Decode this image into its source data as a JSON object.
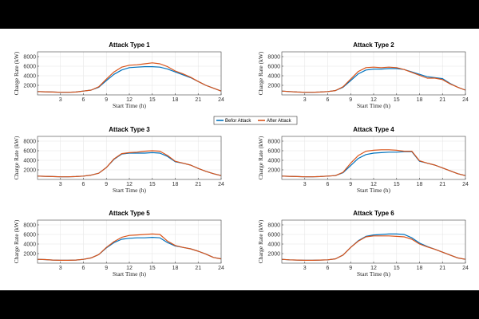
{
  "chart_data": {
    "type": "line",
    "legend": {
      "placement": "center",
      "entries": [
        {
          "name": "Befor Attack",
          "color": "#0072BD"
        },
        {
          "name": "After Attack",
          "color": "#D95319"
        }
      ]
    },
    "x": [
      0,
      1,
      2,
      3,
      4,
      5,
      6,
      7,
      8,
      9,
      10,
      11,
      12,
      13,
      14,
      15,
      16,
      17,
      18,
      19,
      20,
      21,
      22,
      23,
      24
    ],
    "xlim": [
      0,
      24
    ],
    "ylim": [
      0,
      9000
    ],
    "xticks": [
      3,
      6,
      9,
      12,
      15,
      18,
      21,
      24
    ],
    "yticks": [
      2000,
      4000,
      6000,
      8000
    ],
    "grid": true,
    "panels": [
      {
        "title": "Attack Type 1",
        "xlabel": "Start Time (h)",
        "ylabel": "Charge Rate (kW)",
        "series": [
          {
            "name": "Befor Attack",
            "values": [
              700,
              650,
              600,
              550,
              550,
              600,
              800,
              1000,
              1600,
              3000,
              4300,
              5200,
              5700,
              5800,
              5900,
              5900,
              5800,
              5400,
              4800,
              4200,
              3600,
              2800,
              2000,
              1400,
              800
            ]
          },
          {
            "name": "After Attack",
            "values": [
              700,
              650,
              600,
              550,
              550,
              600,
              800,
              1000,
              1700,
              3300,
              4800,
              5800,
              6200,
              6300,
              6500,
              6700,
              6500,
              5900,
              5000,
              4400,
              3700,
              2800,
              2000,
              1400,
              800
            ]
          }
        ]
      },
      {
        "title": "Attack Type 2",
        "xlabel": "Start Time (h)",
        "ylabel": "Charge Rate (kW)",
        "series": [
          {
            "name": "Befor Attack",
            "values": [
              800,
              700,
              600,
              550,
              550,
              600,
              700,
              900,
              1600,
              3000,
              4400,
              5200,
              5400,
              5400,
              5500,
              5500,
              5300,
              4800,
              4300,
              3800,
              3600,
              3400,
              2400,
              1600,
              1000
            ]
          },
          {
            "name": "After Attack",
            "values": [
              800,
              700,
              600,
              550,
              550,
              600,
              700,
              900,
              1700,
              3300,
              4900,
              5700,
              5800,
              5700,
              5800,
              5700,
              5300,
              4700,
              4100,
              3500,
              3500,
              3200,
              2300,
              1600,
              1000
            ]
          }
        ]
      },
      {
        "title": "Attack Type 3",
        "xlabel": "Start Time (h)",
        "ylabel": "Charge Rate (kW)",
        "series": [
          {
            "name": "Befor Attack",
            "values": [
              700,
              650,
              600,
              550,
              550,
              600,
              700,
              900,
              1300,
              2500,
              4200,
              5300,
              5500,
              5500,
              5500,
              5600,
              5500,
              4800,
              3700,
              3400,
              3000,
              2300,
              1700,
              1200,
              800
            ]
          },
          {
            "name": "After Attack",
            "values": [
              700,
              650,
              600,
              550,
              550,
              600,
              700,
              900,
              1300,
              2500,
              4300,
              5400,
              5600,
              5700,
              5900,
              6000,
              5900,
              5000,
              3800,
              3400,
              3000,
              2300,
              1700,
              1200,
              800
            ]
          }
        ]
      },
      {
        "title": "Attack Type 4",
        "xlabel": "Start Time (h)",
        "ylabel": "Charge Rate (kW)",
        "series": [
          {
            "name": "Befor Attack",
            "values": [
              700,
              650,
              600,
              550,
              550,
              600,
              700,
              800,
              1400,
              2900,
              4400,
              5200,
              5500,
              5600,
              5700,
              5700,
              5800,
              5800,
              3800,
              3400,
              3000,
              2400,
              1800,
              1200,
              800
            ]
          },
          {
            "name": "After Attack",
            "values": [
              700,
              650,
              600,
              550,
              550,
              600,
              700,
              800,
              1500,
              3400,
              5000,
              5900,
              6100,
              6200,
              6200,
              6100,
              5900,
              5900,
              3900,
              3400,
              3000,
              2400,
              1800,
              1200,
              800
            ]
          }
        ]
      },
      {
        "title": "Attack Type 5",
        "xlabel": "Start Time (h)",
        "ylabel": "Charge Rate (kW)",
        "series": [
          {
            "name": "Befor Attack",
            "values": [
              800,
              750,
              650,
              600,
              600,
              650,
              800,
              1100,
              1800,
              3200,
              4300,
              5000,
              5200,
              5300,
              5300,
              5400,
              5300,
              4300,
              3600,
              3300,
              3000,
              2500,
              1900,
              1200,
              900
            ]
          },
          {
            "name": "After Attack",
            "values": [
              800,
              750,
              650,
              600,
              600,
              650,
              800,
              1100,
              1800,
              3300,
              4500,
              5400,
              5800,
              5900,
              6000,
              6100,
              6000,
              4600,
              3700,
              3300,
              3000,
              2500,
              1900,
              1200,
              900
            ]
          }
        ]
      },
      {
        "title": "Attack Type 6",
        "xlabel": "Start Time (h)",
        "ylabel": "Charge Rate (kW)",
        "series": [
          {
            "name": "Befor Attack",
            "values": [
              800,
              700,
              650,
              600,
              600,
              650,
              700,
              900,
              1700,
              3300,
              4700,
              5600,
              5900,
              6000,
              6100,
              6100,
              6000,
              5300,
              4200,
              3500,
              2900,
              2300,
              1700,
              1100,
              800
            ]
          },
          {
            "name": "After Attack",
            "values": [
              800,
              700,
              650,
              600,
              600,
              650,
              700,
              900,
              1700,
              3300,
              4600,
              5500,
              5700,
              5700,
              5700,
              5600,
              5500,
              5000,
              4000,
              3400,
              2900,
              2300,
              1700,
              1100,
              800
            ]
          }
        ]
      }
    ]
  }
}
